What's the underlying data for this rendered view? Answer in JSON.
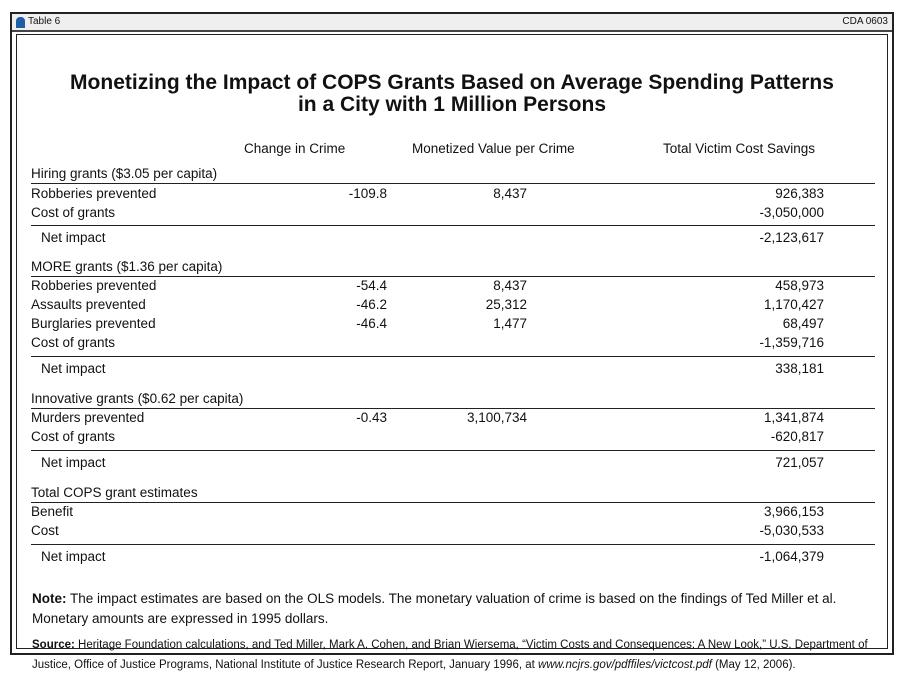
{
  "header": {
    "label": "Table 6",
    "code": "CDA 0603",
    "icon": "bell-icon"
  },
  "title": {
    "line1": "Monetizing the Impact of COPS Grants Based on Average Spending Patterns",
    "line2": "in a City with 1 Million Persons"
  },
  "columns": [
    "Change in Crime",
    "Monetized Value per Crime",
    "Total Victim Cost Savings"
  ],
  "sections": [
    {
      "title": "Hiring grants ($3.05 per capita)",
      "rows": [
        [
          "Robberies prevented",
          "-109.8",
          "8,437",
          "926,383"
        ],
        [
          "Cost of grants",
          "",
          "",
          "-3,050,000"
        ]
      ],
      "net": "-2,123,617"
    },
    {
      "title": "MORE grants ($1.36 per capita)",
      "rows": [
        [
          "Robberies prevented",
          "-54.4",
          "8,437",
          "458,973"
        ],
        [
          "Assaults prevented",
          "-46.2",
          "25,312",
          "1,170,427"
        ],
        [
          "Burglaries prevented",
          "-46.4",
          "1,477",
          "68,497"
        ],
        [
          "Cost of grants",
          "",
          "",
          "-1,359,716"
        ]
      ],
      "net": "338,181"
    },
    {
      "title": "Innovative grants ($0.62 per capita)",
      "rows": [
        [
          "Murders prevented",
          "-0.43",
          "3,100,734",
          "1,341,874"
        ],
        [
          "Cost of grants",
          "",
          "",
          "-620,817"
        ]
      ],
      "net": "721,057"
    },
    {
      "title": "Total COPS grant estimates",
      "rows": [
        [
          "Benefit",
          "",
          "",
          "3,966,153"
        ],
        [
          "Cost",
          "",
          "",
          "-5,030,533"
        ]
      ],
      "net": "-1,064,379"
    }
  ],
  "net_label": "Net impact",
  "note": {
    "label": "Note:",
    "text": " The impact estimates are based on the OLS models. The monetary valuation of crime is based on the findings of Ted Miller et al. Monetary amounts are expressed in 1995 dollars."
  },
  "source": {
    "label": "Source:",
    "text": " Heritage Foundation calculations, and Ted Miller, Mark A. Cohen, and Brian Wiersema, “Victim Costs and Consequences: A New Look,” U.S. Department of Justice, Office of Justice Programs, National Institute of Justice Research Report, January 1996, at ",
    "url": "www.ncjrs.gov/pdffiles/victcost.pdf",
    "date": " (May 12, 2006)."
  }
}
